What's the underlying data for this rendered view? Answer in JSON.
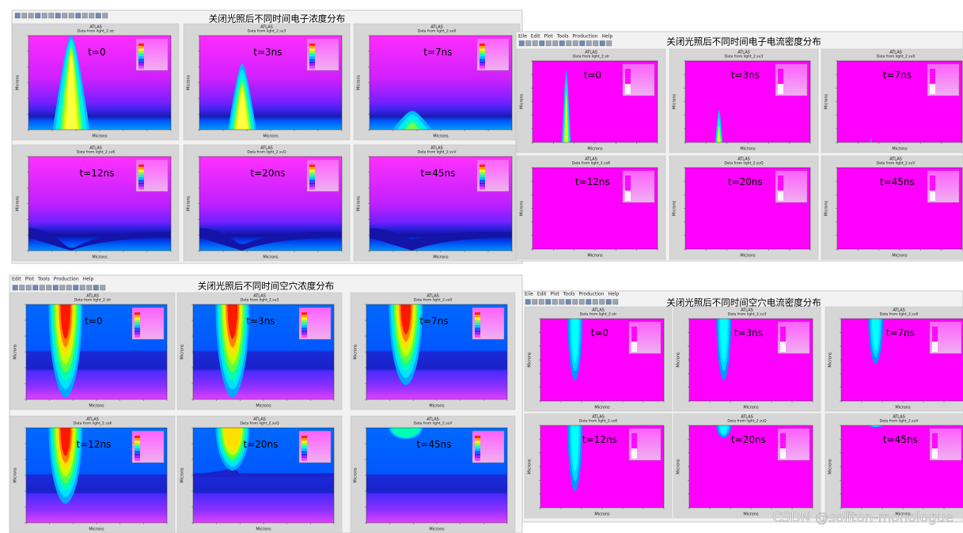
{
  "panels": [
    {
      "menu": [],
      "title": "关闭光照后不同时间电子浓度分布",
      "plots": [
        {
          "header": "ATLAS",
          "subtitle": "Data from light_2.str",
          "label": "t=0",
          "x_axis": "Microns",
          "y_axis": "Microns"
        },
        {
          "header": "ATLAS",
          "subtitle": "Data from light_2.su3",
          "label": "t=3ns",
          "x_axis": "Microns",
          "y_axis": "Microns"
        },
        {
          "header": "ATLAS",
          "subtitle": "Data from light_2.su0",
          "label": "t=7ns",
          "x_axis": "Microns",
          "y_axis": "Microns"
        },
        {
          "header": "ATLAS",
          "subtitle": "Data from light_2.suK",
          "label": "t=12ns",
          "x_axis": "Microns",
          "y_axis": "Microns"
        },
        {
          "header": "ATLAS",
          "subtitle": "Data from light_2.suQ",
          "label": "t=20ns",
          "x_axis": "Microns",
          "y_axis": "Microns"
        },
        {
          "header": "ATLAS",
          "subtitle": "Data from light_2.suV",
          "label": "t=45ns",
          "x_axis": "Microns",
          "y_axis": "Microns"
        }
      ]
    },
    {
      "menu": [
        "Eile",
        "Edit",
        "Plot",
        "Tools",
        "Production",
        "Help"
      ],
      "title": "关闭光照后不同时间电子电流密度分布",
      "plots": [
        {
          "header": "ATLAS",
          "subtitle": "Data from light_2.str",
          "label": "t=0",
          "x_axis": "Microns",
          "y_axis": "Microns"
        },
        {
          "header": "ATLAS",
          "subtitle": "Data from light_2.su3",
          "label": "t=3ns",
          "x_axis": "Microns",
          "y_axis": "Microns"
        },
        {
          "header": "ATLAS",
          "subtitle": "Data from light_2.su0",
          "label": "t=7ns",
          "x_axis": "Microns",
          "y_axis": "Microns"
        },
        {
          "header": "ATLAS",
          "subtitle": "Data from light_2.suK",
          "label": "t=12ns",
          "x_axis": "Microns",
          "y_axis": "Microns"
        },
        {
          "header": "ATLAS",
          "subtitle": "Data from light_2.suQ",
          "label": "t=20ns",
          "x_axis": "Microns",
          "y_axis": "Microns"
        },
        {
          "header": "ATLAS",
          "subtitle": "Data from light_2.suV",
          "label": "t=45ns",
          "x_axis": "Microns",
          "y_axis": "Microns"
        }
      ]
    },
    {
      "menu": [
        "Edit",
        "Plot",
        "Tools",
        "Production",
        "Help"
      ],
      "title": "关闭光照后不同时间空穴浓度分布",
      "plots": [
        {
          "header": "ATLAS",
          "subtitle": "Data from light_2.str",
          "label": "t=0",
          "x_axis": "Microns",
          "y_axis": "Microns"
        },
        {
          "header": "ATLAS",
          "subtitle": "Data from light_2.su3",
          "label": "t=3ns",
          "x_axis": "Microns",
          "y_axis": "Microns"
        },
        {
          "header": "ATLAS",
          "subtitle": "Data from light_2.su0",
          "label": "t=7ns",
          "x_axis": "Microns",
          "y_axis": "Microns"
        },
        {
          "header": "ATLAS",
          "subtitle": "Data from light_2.suK",
          "label": "t=12ns",
          "x_axis": "Microns",
          "y_axis": "Microns"
        },
        {
          "header": "ATLAS",
          "subtitle": "Data from light_2.suQ",
          "label": "t=20ns",
          "x_axis": "Microns",
          "y_axis": "Microns"
        },
        {
          "header": "ATLAS",
          "subtitle": "Data from light_2.suV",
          "label": "t=45ns",
          "x_axis": "Microns",
          "y_axis": "Microns"
        }
      ]
    },
    {
      "menu": [
        "Eile",
        "Edit",
        "Plot",
        "Tools",
        "Production",
        "Help"
      ],
      "title": "关闭光照后不同时间空穴电流密度分布",
      "plots": [
        {
          "header": "ATLAS",
          "subtitle": "Data from light_2.str",
          "label": "t=0",
          "x_axis": "Microns",
          "y_axis": "Microns"
        },
        {
          "header": "ATLAS",
          "subtitle": "Data from light_2.su3",
          "label": "t=3ns",
          "x_axis": "Microns",
          "y_axis": "Microns"
        },
        {
          "header": "ATLAS",
          "subtitle": "Data from light_2.su0",
          "label": "t=7ns",
          "x_axis": "Microns",
          "y_axis": "Microns"
        },
        {
          "header": "ATLAS",
          "subtitle": "Data from light_2.suK",
          "label": "t=12ns",
          "x_axis": "Microns",
          "y_axis": "Microns"
        },
        {
          "header": "ATLAS",
          "subtitle": "Data from light_2.suQ",
          "label": "t=20ns",
          "x_axis": "Microns",
          "y_axis": "Microns"
        },
        {
          "header": "ATLAS",
          "subtitle": "Data from light_2.suV",
          "label": "t=45ns",
          "x_axis": "Microns",
          "y_axis": "Microns"
        }
      ]
    }
  ],
  "watermark": "CSDN @soliton-monologue"
}
